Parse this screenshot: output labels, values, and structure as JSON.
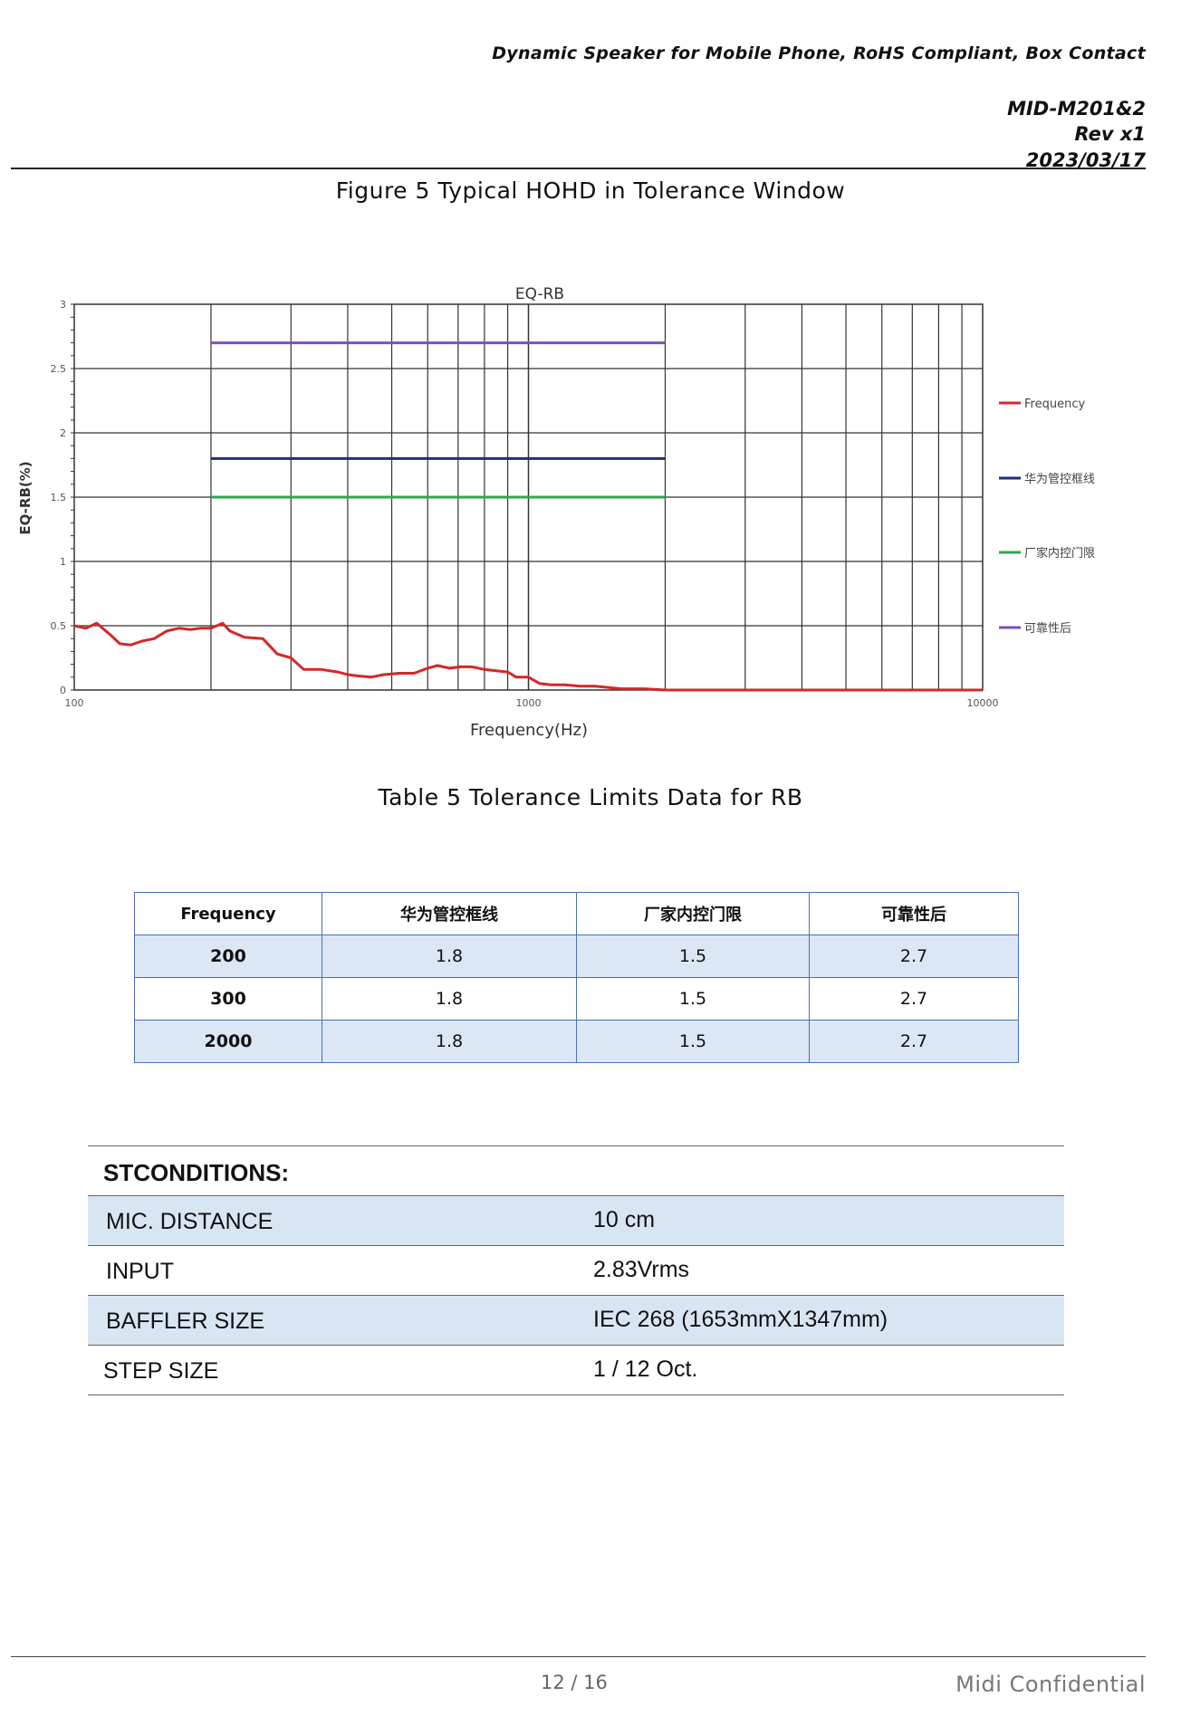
{
  "header": {
    "title": "Dynamic Speaker for Mobile Phone, RoHS Compliant, Box Contact",
    "doc_id": "MID-M201&2",
    "rev": "Rev x1",
    "date": "2023/03/17"
  },
  "figure_caption": "Figure 5 Typical HOHD in Tolerance Window",
  "chart_data": {
    "type": "line",
    "title": "EQ-RB",
    "xlabel": "Frequency(Hz)",
    "ylabel": "EQ-RB(%)",
    "x_scale": "log",
    "xlim": [
      100,
      10000
    ],
    "ylim": [
      0,
      3
    ],
    "x_ticks": [
      "100",
      "1000",
      "10000"
    ],
    "y_ticks": [
      "0",
      "0.5",
      "1",
      "1.5",
      "2",
      "2.5",
      "3"
    ],
    "grid": true,
    "legend_position": "right",
    "series": [
      {
        "name": "Frequency",
        "color": "#d62728",
        "x": [
          100,
          106,
          112,
          120,
          126,
          133,
          141,
          150,
          160,
          170,
          180,
          190,
          200,
          206,
          212,
          220,
          237,
          260,
          280,
          300,
          320,
          350,
          380,
          400,
          420,
          450,
          480,
          520,
          560,
          600,
          630,
          670,
          710,
          750,
          800,
          850,
          900,
          940,
          1000,
          1060,
          1120,
          1200,
          1300,
          1400,
          1600,
          1800,
          2000,
          3000,
          5000,
          10000
        ],
        "y": [
          0.5,
          0.48,
          0.52,
          0.43,
          0.36,
          0.35,
          0.38,
          0.4,
          0.46,
          0.48,
          0.47,
          0.48,
          0.48,
          0.5,
          0.52,
          0.46,
          0.41,
          0.4,
          0.28,
          0.25,
          0.16,
          0.16,
          0.14,
          0.12,
          0.11,
          0.1,
          0.12,
          0.13,
          0.13,
          0.17,
          0.19,
          0.17,
          0.18,
          0.18,
          0.16,
          0.15,
          0.14,
          0.1,
          0.1,
          0.05,
          0.04,
          0.04,
          0.03,
          0.03,
          0.01,
          0.01,
          0.0,
          0.0,
          0.0,
          0.0
        ]
      },
      {
        "name": "华为管控框线",
        "color": "#1f2d7a",
        "x": [
          200,
          2000
        ],
        "y": [
          1.8,
          1.8
        ]
      },
      {
        "name": "厂家内控门限",
        "color": "#2ca84e",
        "x": [
          200,
          2000
        ],
        "y": [
          1.5,
          1.5
        ]
      },
      {
        "name": "可靠性后",
        "color": "#7b4fc0",
        "x": [
          200,
          2000
        ],
        "y": [
          2.7,
          2.7
        ]
      }
    ]
  },
  "table_caption": "Table 5 Tolerance Limits Data for RB",
  "limits_table": {
    "headers": [
      "Frequency",
      "华为管控框线",
      "厂家内控门限",
      "可靠性后"
    ],
    "rows": [
      [
        "200",
        "1.8",
        "1.5",
        "2.7"
      ],
      [
        "300",
        "1.8",
        "1.5",
        "2.7"
      ],
      [
        "2000",
        "1.8",
        "1.5",
        "2.7"
      ]
    ]
  },
  "conditions": {
    "title": "STCONDITIONS:",
    "rows": [
      {
        "key": "MIC. DISTANCE",
        "value": "10 cm"
      },
      {
        "key": "INPUT",
        "value": "2.83Vrms"
      },
      {
        "key": "BAFFLER SIZE",
        "value": "IEC 268 (1653mmX1347mm)"
      },
      {
        "key": "STEP SIZE",
        "value": "1 / 12 Oct."
      }
    ]
  },
  "footer": {
    "page": "12 / 16",
    "confidential": "Midi  Confidential"
  }
}
